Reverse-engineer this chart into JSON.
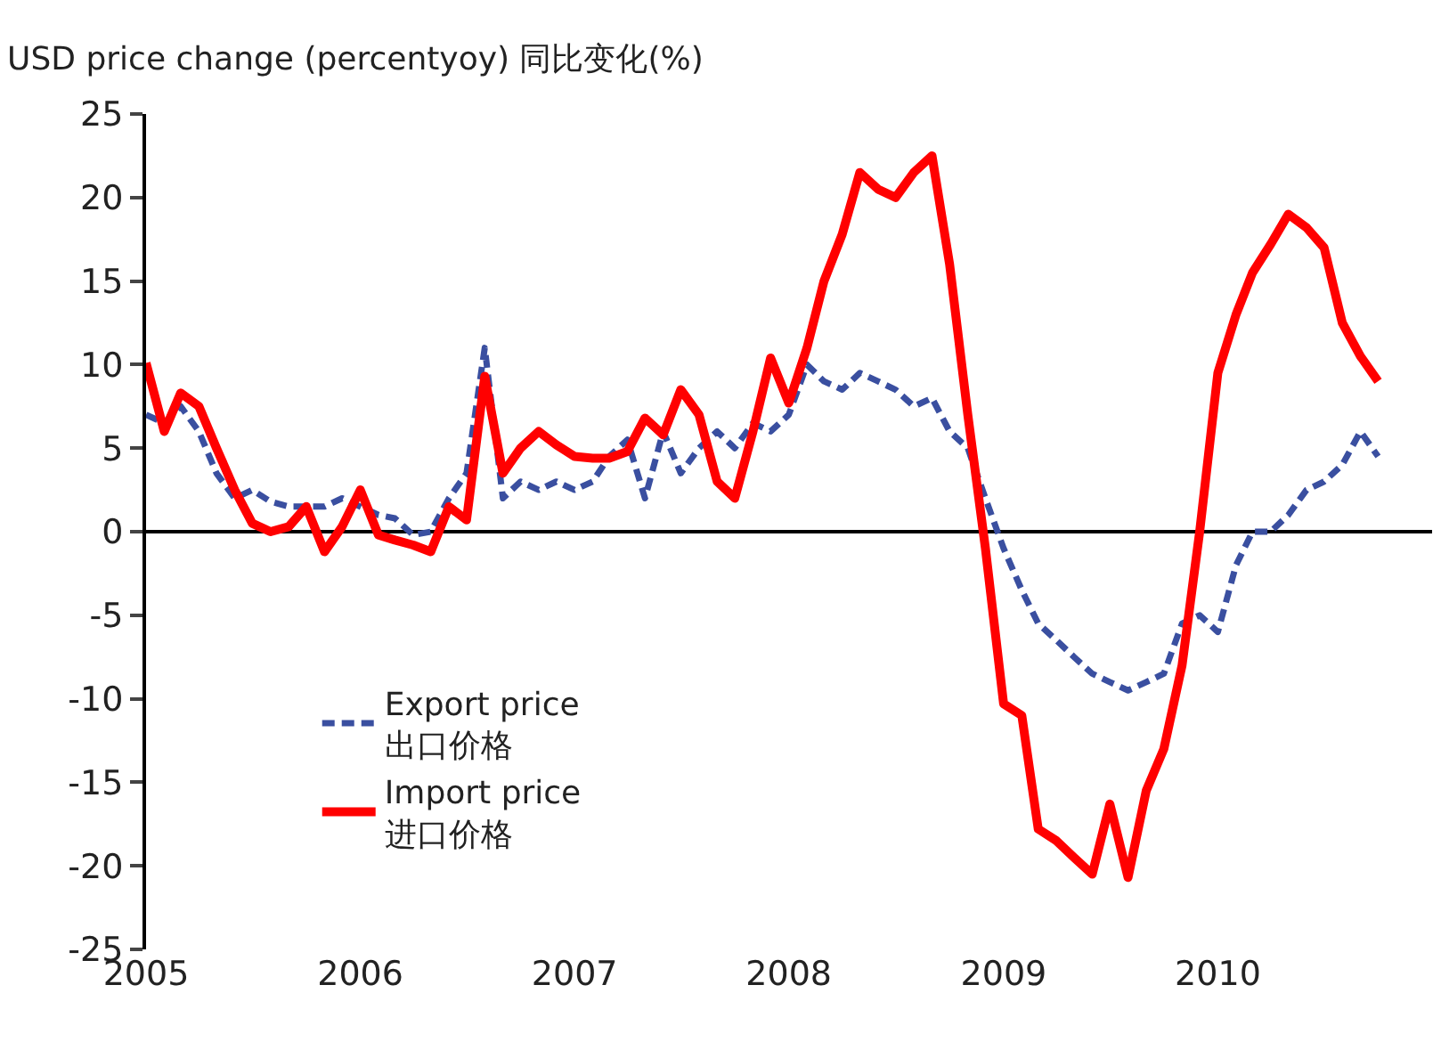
{
  "chart_data": {
    "type": "line",
    "title": "USD price change (percentyoy) 同比变化(%)",
    "x": [
      "2005-01",
      "2005-02",
      "2005-03",
      "2005-04",
      "2005-05",
      "2005-06",
      "2005-07",
      "2005-08",
      "2005-09",
      "2005-10",
      "2005-11",
      "2005-12",
      "2006-01",
      "2006-02",
      "2006-03",
      "2006-04",
      "2006-05",
      "2006-06",
      "2006-07",
      "2006-08",
      "2006-09",
      "2006-10",
      "2006-11",
      "2006-12",
      "2007-01",
      "2007-02",
      "2007-03",
      "2007-04",
      "2007-05",
      "2007-06",
      "2007-07",
      "2007-08",
      "2007-09",
      "2007-10",
      "2007-11",
      "2007-12",
      "2008-01",
      "2008-02",
      "2008-03",
      "2008-04",
      "2008-05",
      "2008-06",
      "2008-07",
      "2008-08",
      "2008-09",
      "2008-10",
      "2008-11",
      "2008-12",
      "2009-01",
      "2009-02",
      "2009-03",
      "2009-04",
      "2009-05",
      "2009-06",
      "2009-07",
      "2009-08",
      "2009-09",
      "2009-10",
      "2009-11",
      "2009-12",
      "2010-01",
      "2010-02",
      "2010-03",
      "2010-04",
      "2010-05",
      "2010-06",
      "2010-07",
      "2010-08",
      "2010-09",
      "2010-10"
    ],
    "series": [
      {
        "name": "Export price\n出口价格",
        "color": "#3a4fa0",
        "line_style": "dashed",
        "values": [
          7,
          6.5,
          7.5,
          6,
          3.5,
          2,
          2.5,
          1.8,
          1.5,
          1.5,
          1.5,
          2,
          1.5,
          1,
          0.8,
          -0.2,
          0,
          2,
          3.5,
          11,
          2,
          3,
          2.5,
          3,
          2.5,
          3,
          4.5,
          5.5,
          2,
          6,
          3.5,
          5,
          6,
          5,
          6.5,
          6,
          7,
          10,
          9,
          8.5,
          9.5,
          9,
          8.5,
          7.5,
          8,
          6,
          5,
          2,
          -1,
          -3.5,
          -5.5,
          -6.5,
          -7.5,
          -8.5,
          -9,
          -9.5,
          -9,
          -8.5,
          -5.5,
          -5,
          -6,
          -2,
          0,
          0,
          1,
          2.5,
          3,
          4,
          6,
          4.5
        ]
      },
      {
        "name": "Import price\n进口价格",
        "color": "#ff0000",
        "line_style": "solid",
        "values": [
          10.1,
          6,
          8.3,
          7.5,
          5,
          2.5,
          0.5,
          0,
          0.3,
          1.5,
          -1.2,
          0.3,
          2.5,
          -0.2,
          -0.5,
          -0.8,
          -1.2,
          1.5,
          0.7,
          9.3,
          3.5,
          5,
          6,
          5.2,
          4.5,
          4.4,
          4.4,
          4.8,
          6.8,
          5.8,
          8.5,
          7,
          3,
          2,
          6,
          10.4,
          7.7,
          11,
          15,
          17.8,
          21.5,
          20.5,
          20,
          21.5,
          22.5,
          16,
          7,
          -1,
          -10.3,
          -11,
          -17.8,
          -18.5,
          -19.5,
          -20.5,
          -16.3,
          -20.7,
          -15.5,
          -13,
          -8,
          0,
          9.5,
          13,
          15.5,
          17.2,
          19,
          18.2,
          17,
          12.5,
          10.5,
          9
        ]
      }
    ],
    "xlim": [
      "2005-01",
      "2011-01"
    ],
    "xticks": [
      {
        "value": "2005-01",
        "label": "2005"
      },
      {
        "value": "2006-01",
        "label": "2006"
      },
      {
        "value": "2007-01",
        "label": "2007"
      },
      {
        "value": "2008-01",
        "label": "2008"
      },
      {
        "value": "2009-01",
        "label": "2009"
      },
      {
        "value": "2010-01",
        "label": "2010"
      }
    ],
    "ylim": [
      -25,
      25
    ],
    "yticks": [
      -25,
      -20,
      -15,
      -10,
      -5,
      0,
      5,
      10,
      15,
      20,
      25
    ],
    "ref_lines": [
      {
        "axis": "y",
        "value": 0,
        "color": "#000000"
      }
    ],
    "grid": false,
    "legend": "bottom left",
    "marker": "none"
  }
}
